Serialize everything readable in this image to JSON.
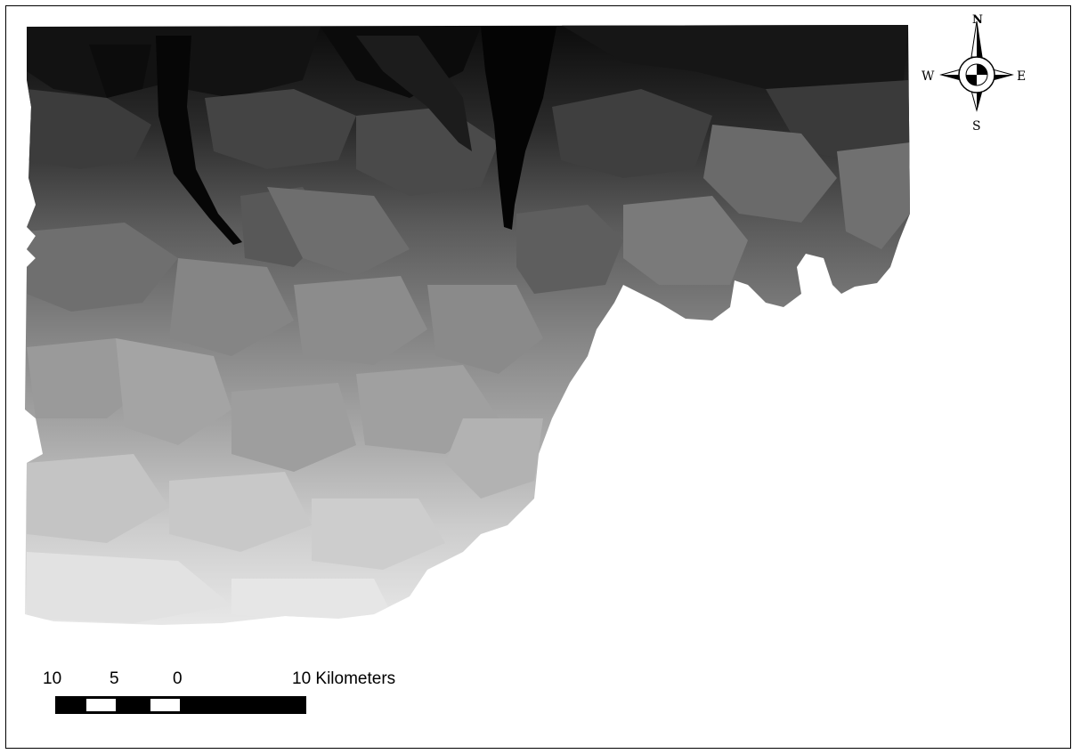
{
  "map": {
    "theme": "grayscale sub-watershed elevation zones",
    "colors": {
      "darkest": "#050505",
      "dark": "#2a2a2a",
      "mid_dark": "#555555",
      "mid": "#808080",
      "mid_light": "#a8a8a8",
      "light": "#cfcfcf",
      "lightest": "#ececec",
      "frame": "#000000",
      "background": "#ffffff"
    }
  },
  "compass": {
    "north": "N",
    "south": "S",
    "east": "E",
    "west": "W"
  },
  "scale_bar": {
    "labels": [
      "10",
      "5",
      "0",
      "10 Kilometers"
    ]
  }
}
